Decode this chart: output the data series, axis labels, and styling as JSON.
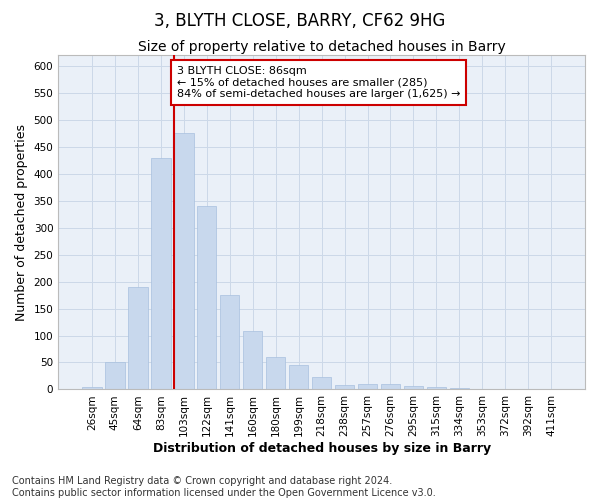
{
  "title": "3, BLYTH CLOSE, BARRY, CF62 9HG",
  "subtitle": "Size of property relative to detached houses in Barry",
  "xlabel": "Distribution of detached houses by size in Barry",
  "ylabel": "Number of detached properties",
  "bar_color": "#c8d8ed",
  "bar_edge_color": "#a8c0de",
  "grid_color": "#ccd8e8",
  "background_color": "#eaf0f8",
  "marker_line_color": "#cc0000",
  "annotation_text": "3 BLYTH CLOSE: 86sqm\n← 15% of detached houses are smaller (285)\n84% of semi-detached houses are larger (1,625) →",
  "annotation_box_color": "#ffffff",
  "annotation_box_edge_color": "#cc0000",
  "categories": [
    "26sqm",
    "45sqm",
    "64sqm",
    "83sqm",
    "103sqm",
    "122sqm",
    "141sqm",
    "160sqm",
    "180sqm",
    "199sqm",
    "218sqm",
    "238sqm",
    "257sqm",
    "276sqm",
    "295sqm",
    "315sqm",
    "334sqm",
    "353sqm",
    "372sqm",
    "392sqm",
    "411sqm"
  ],
  "values": [
    5,
    50,
    190,
    430,
    475,
    340,
    175,
    108,
    60,
    45,
    23,
    8,
    11,
    11,
    6,
    5,
    2,
    1,
    0,
    1,
    1
  ],
  "ylim": [
    0,
    620
  ],
  "yticks": [
    0,
    50,
    100,
    150,
    200,
    250,
    300,
    350,
    400,
    450,
    500,
    550,
    600
  ],
  "footer_text": "Contains HM Land Registry data © Crown copyright and database right 2024.\nContains public sector information licensed under the Open Government Licence v3.0.",
  "title_fontsize": 12,
  "subtitle_fontsize": 10,
  "axis_label_fontsize": 9,
  "tick_fontsize": 7.5,
  "footer_fontsize": 7
}
